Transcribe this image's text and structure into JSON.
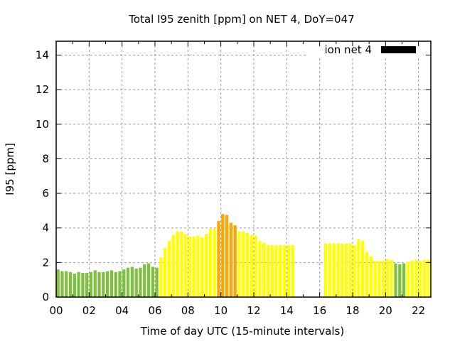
{
  "chart_data": {
    "type": "bar",
    "title": "Total I95 zenith [ppm] on NET 4, DoY=047",
    "xlabel": "Time of day UTC (15-minute intervals)",
    "ylabel": "I95 [ppm]",
    "xlim": [
      0,
      22.75
    ],
    "ylim": [
      0,
      14.8
    ],
    "xticks": [
      "00",
      "02",
      "04",
      "06",
      "08",
      "10",
      "12",
      "14",
      "16",
      "18",
      "20",
      "22"
    ],
    "xtick_values": [
      0,
      2,
      4,
      6,
      8,
      10,
      12,
      14,
      16,
      18,
      20,
      22
    ],
    "yticks": [
      "0",
      "2",
      "4",
      "6",
      "8",
      "10",
      "12",
      "14"
    ],
    "ytick_values": [
      0,
      2,
      4,
      6,
      8,
      10,
      12,
      14
    ],
    "grid": true,
    "legend": {
      "label": "ion net 4",
      "placement": "top-right",
      "color": "#000000"
    },
    "bin_hours": 0.25,
    "color_thresholds": {
      "green_below": 2.0,
      "orange_from": 4.0
    },
    "colors": {
      "green": "#80c040",
      "yellow": "#ffff00",
      "orange": "#ffa500"
    },
    "values": [
      1.6,
      1.5,
      1.5,
      1.45,
      1.35,
      1.45,
      1.4,
      1.4,
      1.45,
      1.55,
      1.45,
      1.45,
      1.5,
      1.55,
      1.45,
      1.5,
      1.6,
      1.7,
      1.75,
      1.65,
      1.7,
      1.9,
      1.95,
      1.75,
      1.7,
      2.3,
      2.85,
      3.25,
      3.6,
      3.8,
      3.8,
      3.65,
      3.5,
      3.5,
      3.55,
      3.45,
      3.65,
      3.95,
      3.95,
      4.4,
      4.8,
      4.75,
      4.3,
      4.15,
      3.8,
      3.8,
      3.7,
      3.6,
      3.55,
      3.25,
      3.15,
      3.0,
      3.0,
      3.0,
      3.0,
      3.0,
      3.0,
      3.0,
      null,
      null,
      null,
      null,
      null,
      null,
      null,
      3.1,
      3.1,
      3.1,
      3.1,
      3.1,
      3.1,
      3.1,
      3.0,
      3.35,
      3.25,
      2.6,
      2.35,
      2.1,
      2.1,
      2.1,
      2.2,
      2.15,
      1.95,
      1.9,
      1.95,
      2.05,
      2.1,
      2.15,
      2.1,
      2.15,
      2.15,
      2.1
    ]
  }
}
